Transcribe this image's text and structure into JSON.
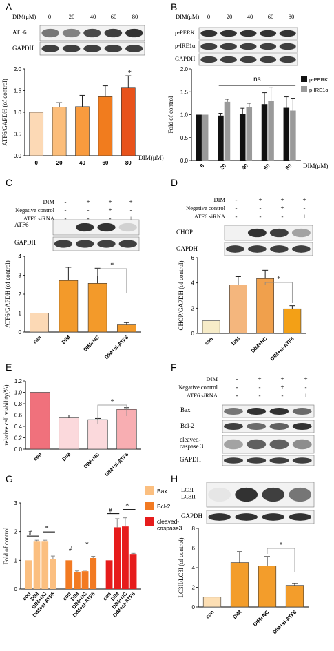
{
  "panels": {
    "A": {
      "letter": "A",
      "header_label": "DIM(μM)",
      "header_values": [
        "0",
        "20",
        "40",
        "60",
        "80"
      ],
      "blots": [
        "ATF6",
        "GAPDH"
      ]
    },
    "B": {
      "letter": "B",
      "header_label": "DIM(μM)",
      "header_values": [
        "0",
        "20",
        "40",
        "60",
        "80"
      ],
      "blots": [
        "p-PERK",
        "p-IRE1α",
        "GAPDH"
      ]
    },
    "C": {
      "letter": "C",
      "conditions": [
        {
          "label": "DIM",
          "values": [
            "-",
            "+",
            "+",
            "+"
          ]
        },
        {
          "label": "Negative control",
          "values": [
            "-",
            "-",
            "+",
            "-"
          ]
        },
        {
          "label": "ATF6 siRNA",
          "values": [
            "-",
            "-",
            "-",
            "+"
          ]
        }
      ],
      "blots": [
        "ATF6",
        "GAPDH"
      ]
    },
    "D": {
      "letter": "D",
      "conditions": [
        {
          "label": "DIM",
          "values": [
            "-",
            "+",
            "+",
            "+"
          ]
        },
        {
          "label": "Negative control",
          "values": [
            "-",
            "-",
            "+",
            "-"
          ]
        },
        {
          "label": "ATF6 siRNA",
          "values": [
            "-",
            "-",
            "-",
            "+"
          ]
        }
      ],
      "blots": [
        "CHOP",
        "GAPDH"
      ]
    },
    "E": {
      "letter": "E"
    },
    "F": {
      "letter": "F",
      "conditions": [
        {
          "label": "DIM",
          "values": [
            "-",
            "+",
            "+",
            "+"
          ]
        },
        {
          "label": "Negative control",
          "values": [
            "-",
            "-",
            "+",
            "-"
          ]
        },
        {
          "label": "ATF6 siRNA",
          "values": [
            "-",
            "-",
            "-",
            "+"
          ]
        }
      ],
      "blots": [
        "Bax",
        "Bcl-2",
        "cleaved-\ncaspase 3",
        "GAPDH"
      ]
    },
    "G": {
      "letter": "G"
    },
    "H": {
      "letter": "H",
      "blots": [
        "LC3I\nLC3II",
        "GAPDH"
      ]
    }
  },
  "chart_data": [
    {
      "id": "A",
      "type": "bar",
      "categories": [
        "0",
        "20",
        "40",
        "60",
        "80"
      ],
      "values": [
        1.0,
        1.12,
        1.13,
        1.36,
        1.56
      ],
      "errors": [
        0,
        0.1,
        0.26,
        0.25,
        0.28
      ],
      "colors": [
        "#fcd9b5",
        "#fbbd7a",
        "#f99b3e",
        "#f17c1e",
        "#e8521b"
      ],
      "ylabel": "ATF6/GAPDH (of control)",
      "xlabel": "DIM(μM)",
      "ylim": [
        0,
        2.0
      ],
      "yticks": [
        0.0,
        0.5,
        1.0,
        1.5,
        2.0
      ],
      "annotations": [
        "*"
      ]
    },
    {
      "id": "B",
      "type": "bar",
      "categories": [
        "0",
        "20",
        "40",
        "60",
        "80"
      ],
      "series": [
        {
          "name": "p-PERK",
          "values": [
            1.0,
            0.98,
            1.02,
            1.23,
            1.15
          ],
          "errors": [
            0,
            0.05,
            0.12,
            0.25,
            0.24
          ],
          "color": "#111111"
        },
        {
          "name": "p-IRE1α",
          "values": [
            1.0,
            1.28,
            1.17,
            1.3,
            1.09
          ],
          "errors": [
            0,
            0.06,
            0.08,
            0.3,
            0.27
          ],
          "color": "#9a9a9a"
        }
      ],
      "ylabel": "Fold of control",
      "xlabel": "DIM(μM)",
      "ylim": [
        0,
        2.0
      ],
      "yticks": [
        0.0,
        0.5,
        1.0,
        1.5,
        2.0
      ],
      "annotations": [
        "ns"
      ],
      "legend": "top-right"
    },
    {
      "id": "C",
      "type": "bar",
      "categories": [
        "con",
        "DIM",
        "DIM+NC",
        "DIM+si-ATF6"
      ],
      "values": [
        1.0,
        2.72,
        2.57,
        0.38
      ],
      "errors": [
        0,
        0.7,
        0.8,
        0.12
      ],
      "colors": [
        "#fcd9b5",
        "#f39a2a",
        "#f39a2a",
        "#f39a2a"
      ],
      "ylabel": "ATF6/GAPDH (of control)",
      "ylim": [
        0,
        4
      ],
      "yticks": [
        0,
        1,
        2,
        3,
        4
      ],
      "annotations": [
        "*"
      ]
    },
    {
      "id": "D",
      "type": "bar",
      "categories": [
        "con",
        "DIM",
        "DIM+NC",
        "DIM+si-ATF6"
      ],
      "values": [
        1.0,
        3.85,
        4.35,
        1.95
      ],
      "errors": [
        0,
        0.65,
        0.65,
        0.25
      ],
      "colors": [
        "#f7ecc8",
        "#f4b67d",
        "#f0a04c",
        "#f3a016"
      ],
      "ylabel": "CHOP/GAPDH (of control)",
      "ylim": [
        0,
        6
      ],
      "yticks": [
        0,
        2,
        4,
        6
      ],
      "annotations": [
        "*"
      ]
    },
    {
      "id": "E",
      "type": "bar",
      "categories": [
        "con",
        "DIM",
        "DIM+NC",
        "DIM+si-ATF6"
      ],
      "values": [
        1.0,
        0.55,
        0.52,
        0.7
      ],
      "errors": [
        0,
        0.05,
        0.02,
        0.03
      ],
      "colors": [
        "#f0717c",
        "#fbd9dc",
        "#fbd9dc",
        "#f8aeb2"
      ],
      "ylabel": "relative cell viability(%)",
      "ylim": [
        0,
        1.2
      ],
      "yticks": [
        0.0,
        0.2,
        0.4,
        0.6,
        0.8,
        1.0,
        1.2
      ],
      "annotations": [
        "*"
      ]
    },
    {
      "id": "G",
      "type": "bar",
      "groups": [
        "Bax",
        "Bcl-2",
        "cleaved-\ncaspase3"
      ],
      "categories": [
        "con",
        "DIM",
        "DIM+NC",
        "DIM+si-ATF6"
      ],
      "series": [
        {
          "name": "Bax",
          "values": [
            1.0,
            1.65,
            1.65,
            1.05
          ],
          "errors": [
            0,
            0.05,
            0.05,
            0.1
          ],
          "color": "#fbbf80"
        },
        {
          "name": "Bcl-2",
          "values": [
            1.0,
            0.58,
            0.62,
            1.08
          ],
          "errors": [
            0,
            0.05,
            0.03,
            0.06
          ],
          "color": "#f27a22"
        },
        {
          "name": "cleaved-\ncaspase3",
          "values": [
            1.0,
            2.15,
            2.18,
            1.22
          ],
          "errors": [
            0,
            0.3,
            0.3,
            0.02
          ],
          "color": "#e61c1c"
        }
      ],
      "ylabel": "Fold of control",
      "ylim": [
        0,
        3
      ],
      "yticks": [
        0,
        1,
        2,
        3
      ],
      "annotations": [
        "#",
        "*"
      ],
      "legend": "right"
    },
    {
      "id": "H",
      "type": "bar",
      "categories": [
        "con",
        "DIM",
        "DIM+NC",
        "DIM+si-ATF6"
      ],
      "values": [
        1.0,
        4.52,
        4.18,
        2.2
      ],
      "errors": [
        0,
        1.1,
        0.95,
        0.18
      ],
      "colors": [
        "#fddfb4",
        "#f39d2b",
        "#f39d2b",
        "#f39d2b"
      ],
      "ylabel": "LC3II/LC3I (of control)",
      "ylim": [
        0,
        8
      ],
      "yticks": [
        0,
        2,
        4,
        6,
        8
      ],
      "annotations": [
        "*"
      ]
    }
  ]
}
